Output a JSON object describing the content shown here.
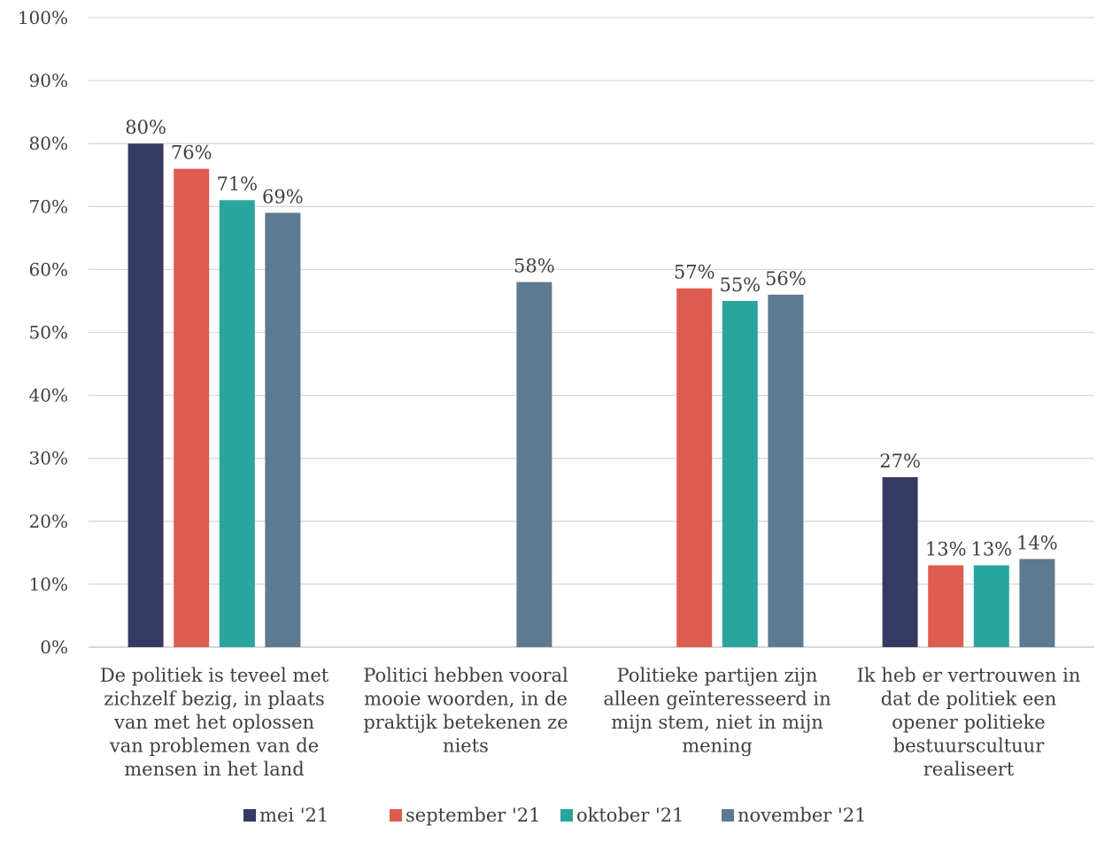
{
  "chart_data": {
    "type": "bar",
    "categories": [
      [
        "De politiek is teveel met",
        "zichzelf bezig, in plaats",
        "van met het oplossen",
        "van problemen van de",
        "mensen in het land"
      ],
      [
        "Politici hebben vooral",
        "mooie woorden, in de",
        "praktijk betekenen ze",
        "niets"
      ],
      [
        "Politieke partijen zijn",
        "alleen geïnteresseerd in",
        "mijn stem, niet in mijn",
        "mening"
      ],
      [
        "Ik heb er vertrouwen in",
        "dat de politiek een",
        "opener politieke",
        "bestuurscultuur",
        "realiseert"
      ]
    ],
    "series": [
      {
        "name": "mei '21",
        "color": "#363a63",
        "values": [
          80,
          null,
          null,
          27
        ],
        "labels": [
          "80%",
          null,
          null,
          "27%"
        ]
      },
      {
        "name": "september '21",
        "color": "#de5b50",
        "values": [
          76,
          null,
          57,
          13
        ],
        "labels": [
          "76%",
          null,
          "57%",
          "13%"
        ]
      },
      {
        "name": "oktober '21",
        "color": "#2aa59e",
        "values": [
          71,
          null,
          55,
          13
        ],
        "labels": [
          "71%",
          null,
          "55%",
          "13%"
        ]
      },
      {
        "name": "november '21",
        "color": "#5d7a90",
        "values": [
          69,
          58,
          56,
          14
        ],
        "labels": [
          "69%",
          "58%",
          "56%",
          "14%"
        ]
      }
    ],
    "yticks": [
      "0%",
      "10%",
      "20%",
      "30%",
      "40%",
      "50%",
      "60%",
      "70%",
      "80%",
      "90%",
      "100%"
    ],
    "ylim": [
      0,
      100
    ],
    "grid": true,
    "legend_position": "bottom"
  }
}
